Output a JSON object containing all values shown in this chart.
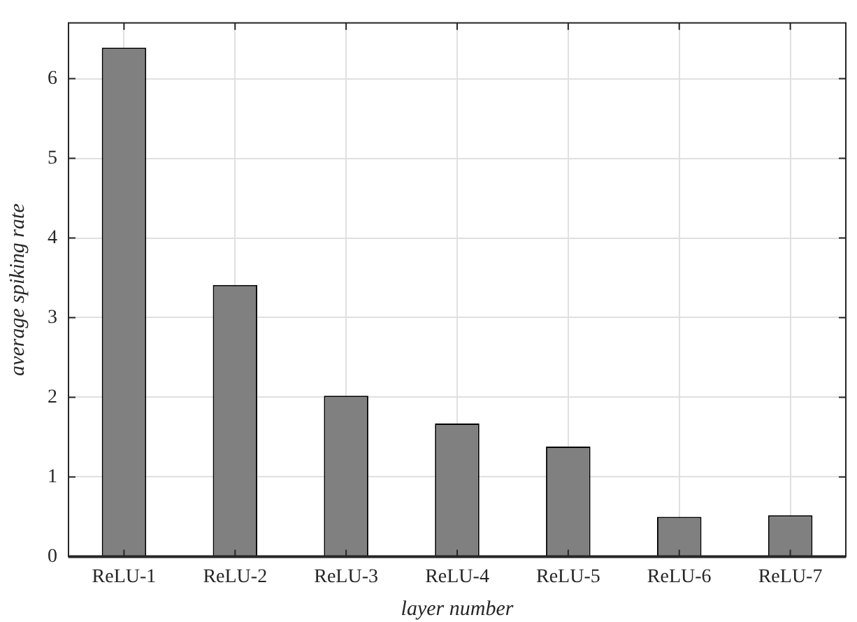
{
  "chart_data": {
    "type": "bar",
    "xlabel": "layer number",
    "ylabel": "average spiking rate",
    "categories": [
      "ReLU-1",
      "ReLU-2",
      "ReLU-3",
      "ReLU-4",
      "ReLU-5",
      "ReLU-6",
      "ReLU-7"
    ],
    "values": [
      6.39,
      3.41,
      2.02,
      1.67,
      1.38,
      0.5,
      0.52
    ],
    "color": "#808080",
    "ylim": [
      0,
      6.7
    ],
    "yticks": [
      0,
      1,
      2,
      3,
      4,
      5,
      6
    ],
    "grid": true
  }
}
